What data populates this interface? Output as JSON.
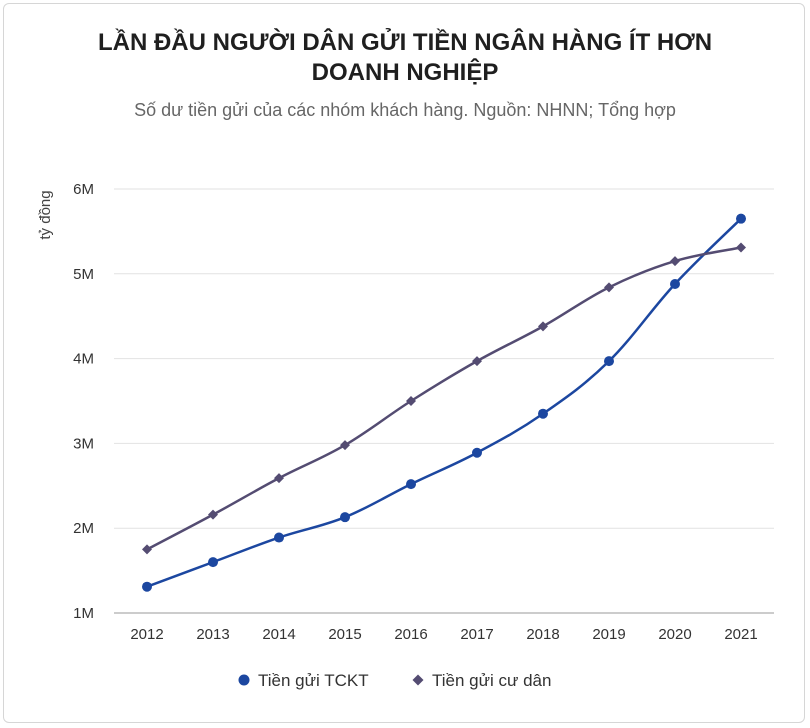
{
  "title_lines": [
    "LẦN ĐẦU NGƯỜI DÂN GỬI TIỀN NGÂN HÀNG ÍT HƠN",
    "DOANH NGHIỆP"
  ],
  "subtitle": "Số dư tiền gửi của các nhóm khách hàng. Nguồn: NHNN; Tổng hợp",
  "chart_data": {
    "type": "line",
    "title": "LẦN ĐẦU NGƯỜI DÂN GỬI TIỀN NGÂN HÀNG ÍT HƠN DOANH NGHIỆP",
    "subtitle": "Số dư tiền gửi của các nhóm khách hàng. Nguồn: NHNN; Tổng hợp",
    "xlabel": "",
    "ylabel": "tỷ đồng",
    "categories": [
      "2012",
      "2013",
      "2014",
      "2015",
      "2016",
      "2017",
      "2018",
      "2019",
      "2020",
      "2021"
    ],
    "ylim": [
      1000000,
      6000000
    ],
    "yticks": [
      1000000,
      2000000,
      3000000,
      4000000,
      5000000,
      6000000
    ],
    "ytick_labels": [
      "1M",
      "2M",
      "3M",
      "4M",
      "5M",
      "6M"
    ],
    "grid": true,
    "legend_position": "bottom",
    "series": [
      {
        "name": "Tiền gửi TCKT",
        "color": "#1c47a0",
        "marker": "circle",
        "values": [
          1310000,
          1600000,
          1890000,
          2130000,
          2520000,
          2890000,
          3350000,
          3970000,
          4880000,
          5650000
        ]
      },
      {
        "name": "Tiền gửi cư dân",
        "color": "#544c72",
        "marker": "diamond",
        "values": [
          1750000,
          2160000,
          2590000,
          2980000,
          3500000,
          3970000,
          4380000,
          4840000,
          5150000,
          5310000
        ]
      }
    ]
  }
}
